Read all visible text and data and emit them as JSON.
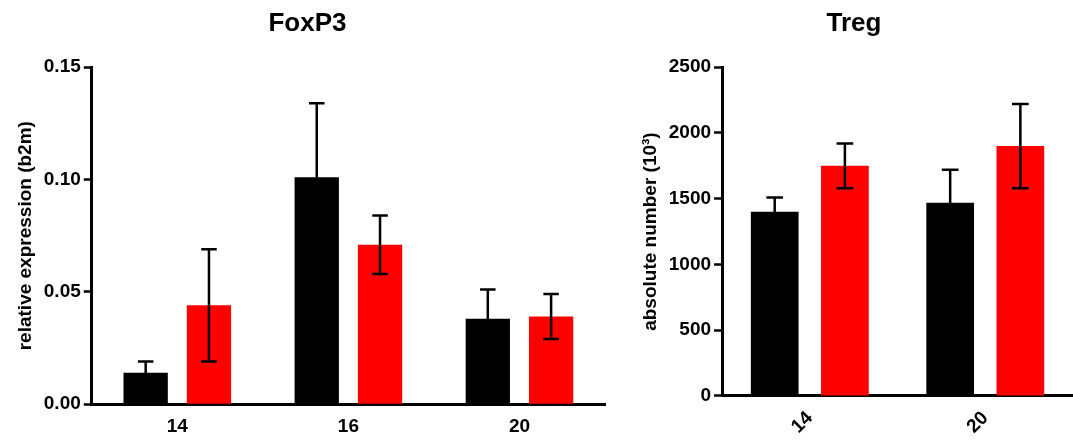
{
  "chart_data": [
    {
      "type": "bar",
      "title": "FoxP3",
      "ylabel": "relative expression (b2m)",
      "categories": [
        "14",
        "16",
        "20"
      ],
      "series": [
        {
          "color": "#000000",
          "values": [
            0.014,
            0.101,
            0.038
          ],
          "errors": [
            0.005,
            0.033,
            0.013
          ]
        },
        {
          "color": "#ff0000",
          "values": [
            0.044,
            0.071,
            0.039
          ],
          "errors": [
            0.025,
            0.013,
            0.01
          ]
        }
      ],
      "ylim": [
        0,
        0.15
      ],
      "yticks": [
        {
          "value": 0,
          "label": "0.00"
        },
        {
          "value": 0.05,
          "label": "0.05"
        },
        {
          "value": 0.1,
          "label": "0.10"
        },
        {
          "value": 0.15,
          "label": "0.15"
        }
      ],
      "grid": false,
      "legend": false
    },
    {
      "type": "bar",
      "title": "Treg",
      "ylabel": "absolute number (10³)",
      "categories": [
        "14",
        "20"
      ],
      "series": [
        {
          "color": "#000000",
          "values": [
            1400,
            1470
          ],
          "errors": [
            110,
            250
          ]
        },
        {
          "color": "#ff0000",
          "values": [
            1750,
            1900
          ],
          "errors": [
            170,
            320
          ]
        }
      ],
      "ylim": [
        0,
        2500
      ],
      "yticks": [
        0,
        500,
        1000,
        1500,
        2000,
        2500
      ],
      "grid": false,
      "legend": false
    }
  ]
}
